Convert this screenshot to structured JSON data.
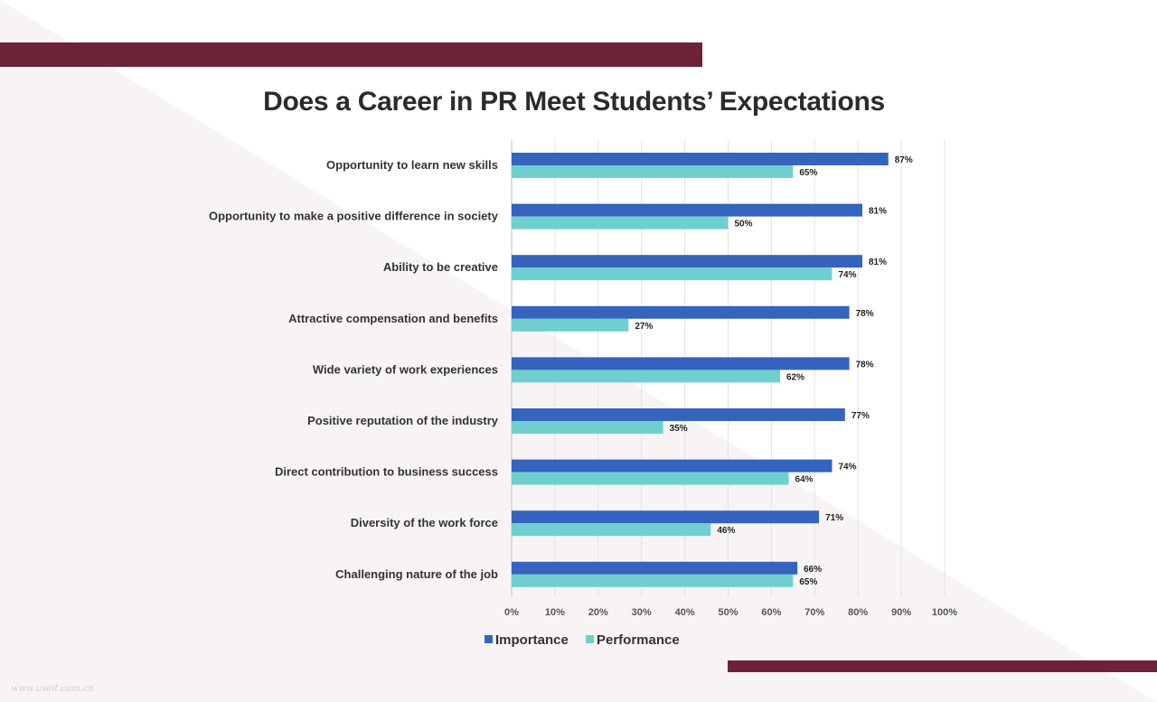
{
  "title": "Does a Career in PR Meet Students’ Expectations",
  "watermark": "www.useit.com.cn",
  "colors": {
    "importance": "#3464bd",
    "performance": "#6fcfce",
    "accent_band": "#6e2238",
    "grid": "#e2e2e2",
    "label_text": "#333333"
  },
  "chart_data": {
    "type": "bar",
    "orientation": "horizontal",
    "categories": [
      "Opportunity to learn new skills",
      "Opportunity to make a positive difference in society",
      "Ability to be creative",
      "Attractive compensation and benefits",
      "Wide variety of work experiences",
      "Positive reputation of the industry",
      "Direct contribution to business success",
      "Diversity of the work force",
      "Challenging nature of the job"
    ],
    "series": [
      {
        "name": "Importance",
        "values": [
          87,
          81,
          81,
          78,
          78,
          77,
          74,
          71,
          66
        ],
        "labels": [
          "87%",
          "81%",
          "81%",
          "78%",
          "78%",
          "77%",
          "74%",
          "71%",
          "66%"
        ]
      },
      {
        "name": "Performance",
        "values": [
          65,
          50,
          74,
          27,
          62,
          35,
          64,
          46,
          65
        ],
        "labels": [
          "65%",
          "50%",
          "74%",
          "27%",
          "62%",
          "35%",
          "64%",
          "46%",
          "65%"
        ]
      }
    ],
    "xlim": [
      0,
      100
    ],
    "xticks": [
      0,
      10,
      20,
      30,
      40,
      50,
      60,
      70,
      80,
      90,
      100
    ],
    "xtick_labels": [
      "0%",
      "10%",
      "20%",
      "30%",
      "40%",
      "50%",
      "60%",
      "70%",
      "80%",
      "90%",
      "100%"
    ],
    "grid": true,
    "legend_position": "bottom"
  }
}
